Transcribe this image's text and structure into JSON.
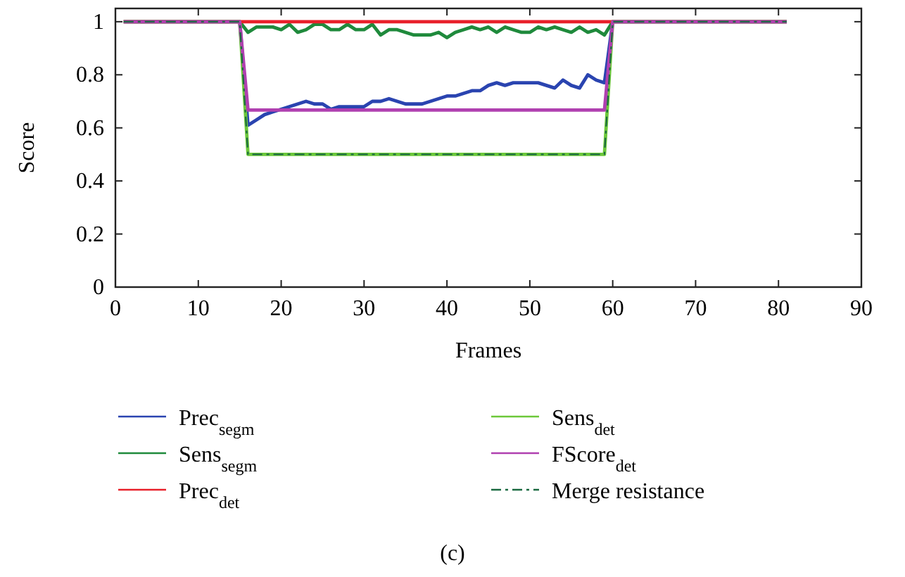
{
  "chart_data": {
    "type": "line",
    "xlabel": "Frames",
    "ylabel": "Score",
    "xlim": [
      0,
      90
    ],
    "xticks": [
      0,
      10,
      20,
      30,
      40,
      50,
      60,
      70,
      80,
      90
    ],
    "ylim": [
      0,
      1.05
    ],
    "yticks": [
      0,
      0.2,
      0.4,
      0.6,
      0.8,
      1
    ],
    "grid": false,
    "legend": "bottom",
    "marker": "none",
    "annotations": [
      "(c)"
    ],
    "series": [
      {
        "name": "Prec$_{segm}$",
        "color": "#2a44b0",
        "x": [
          1,
          15,
          16,
          17,
          18,
          19,
          20,
          21,
          22,
          23,
          24,
          25,
          26,
          27,
          28,
          29,
          30,
          31,
          32,
          33,
          34,
          35,
          36,
          37,
          38,
          39,
          40,
          41,
          42,
          43,
          44,
          45,
          46,
          47,
          48,
          49,
          50,
          51,
          52,
          53,
          54,
          55,
          56,
          57,
          58,
          59,
          60,
          81
        ],
        "values": [
          1,
          1,
          0.61,
          0.63,
          0.65,
          0.66,
          0.67,
          0.68,
          0.69,
          0.7,
          0.69,
          0.69,
          0.67,
          0.68,
          0.68,
          0.68,
          0.68,
          0.7,
          0.7,
          0.71,
          0.7,
          0.69,
          0.69,
          0.69,
          0.7,
          0.71,
          0.72,
          0.72,
          0.73,
          0.74,
          0.74,
          0.76,
          0.77,
          0.76,
          0.77,
          0.77,
          0.77,
          0.77,
          0.76,
          0.75,
          0.78,
          0.76,
          0.75,
          0.8,
          0.78,
          0.77,
          1,
          1
        ]
      },
      {
        "name": "Sens$_{segm}$",
        "color": "#1f8a3c",
        "x": [
          1,
          15,
          16,
          17,
          18,
          19,
          20,
          21,
          22,
          23,
          24,
          25,
          26,
          27,
          28,
          29,
          30,
          31,
          32,
          33,
          34,
          35,
          36,
          37,
          38,
          39,
          40,
          41,
          42,
          43,
          44,
          45,
          46,
          47,
          48,
          49,
          50,
          51,
          52,
          53,
          54,
          55,
          56,
          57,
          58,
          59,
          60,
          81
        ],
        "values": [
          1,
          1,
          0.96,
          0.98,
          0.98,
          0.98,
          0.97,
          0.99,
          0.96,
          0.97,
          0.99,
          0.99,
          0.97,
          0.97,
          0.99,
          0.97,
          0.97,
          0.99,
          0.95,
          0.97,
          0.97,
          0.96,
          0.95,
          0.95,
          0.95,
          0.96,
          0.94,
          0.96,
          0.97,
          0.98,
          0.97,
          0.98,
          0.96,
          0.98,
          0.97,
          0.96,
          0.96,
          0.98,
          0.97,
          0.98,
          0.97,
          0.96,
          0.98,
          0.96,
          0.97,
          0.95,
          1,
          1
        ]
      },
      {
        "name": "Prec$_{det}$",
        "color": "#e8202a",
        "x": [
          1,
          81
        ],
        "values": [
          1,
          1
        ]
      },
      {
        "name": "Sens$_{det}$",
        "color": "#6cc83a",
        "x": [
          1,
          15,
          16,
          59,
          60,
          81
        ],
        "values": [
          1,
          1,
          0.5,
          0.5,
          1,
          1
        ]
      },
      {
        "name": "FScore$_{det}$",
        "color": "#b040b0",
        "x": [
          1,
          15,
          16,
          59,
          60,
          81
        ],
        "values": [
          1,
          1,
          0.667,
          0.667,
          1,
          1
        ]
      },
      {
        "name": "Merge resistance",
        "color": "#1a6a40",
        "line_style": "dashed",
        "x": [
          1,
          15,
          16,
          59,
          60,
          81
        ],
        "values": [
          1,
          1,
          0.5,
          0.5,
          1,
          1
        ]
      }
    ]
  }
}
